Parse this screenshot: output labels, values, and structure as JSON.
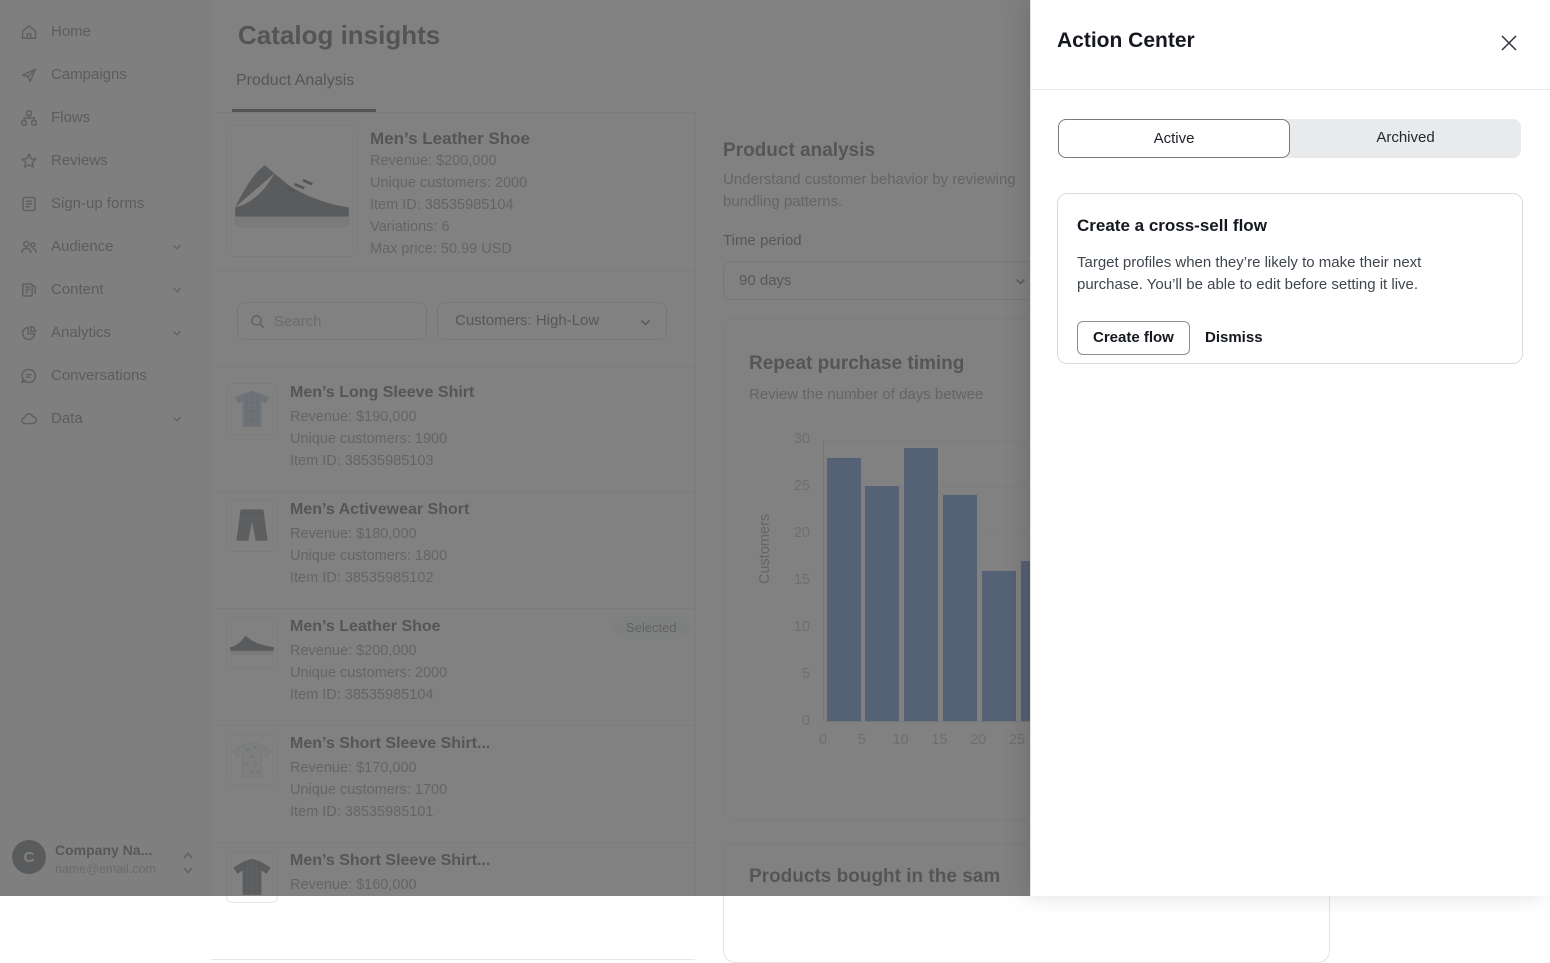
{
  "sidebar": {
    "items": [
      {
        "label": "Home",
        "icon": "home-icon",
        "expandable": false
      },
      {
        "label": "Campaigns",
        "icon": "send-icon",
        "expandable": false
      },
      {
        "label": "Flows",
        "icon": "flow-icon",
        "expandable": false
      },
      {
        "label": "Reviews",
        "icon": "star-icon",
        "expandable": false
      },
      {
        "label": "Sign-up forms",
        "icon": "form-icon",
        "expandable": false
      },
      {
        "label": "Audience",
        "icon": "people-icon",
        "expandable": true
      },
      {
        "label": "Content",
        "icon": "content-icon",
        "expandable": true
      },
      {
        "label": "Analytics",
        "icon": "pie-chart-icon",
        "expandable": true
      },
      {
        "label": "Conversations",
        "icon": "chat-icon",
        "expandable": false
      },
      {
        "label": "Data",
        "icon": "cloud-icon",
        "expandable": true
      }
    ],
    "account": {
      "initial": "C",
      "company": "Company Na...",
      "email": "name@email.com"
    }
  },
  "header": {
    "title": "Catalog insights",
    "tab": "Product Analysis"
  },
  "detail": {
    "name": "Men’s Leather Shoe",
    "lines": [
      "Revenue: $200,000",
      "Unique customers: 2000",
      "Item ID: 38535985104",
      "Variations: 6",
      "Max price: 50.99 USD"
    ]
  },
  "filters": {
    "search_placeholder": "Search",
    "sort_value": "Customers: High-Low"
  },
  "products": [
    {
      "name": "Men’s Long Sleeve Shirt",
      "revenue": "Revenue: $190,000",
      "customers": "Unique customers: 1900",
      "item_id": "Item ID: 38535985103"
    },
    {
      "name": "Men’s Activewear Short",
      "revenue": "Revenue: $180,000",
      "customers": "Unique customers: 1800",
      "item_id": "Item ID: 38535985102"
    },
    {
      "name": "Men’s Leather Shoe",
      "revenue": "Revenue: $200,000",
      "customers": "Unique customers: 2000",
      "item_id": "Item ID: 38535985104",
      "badge": "Selected"
    },
    {
      "name": "Men’s Short Sleeve Shirt...",
      "revenue": "Revenue: $170,000",
      "customers": "Unique customers: 1700",
      "item_id": "Item ID: 38535985101"
    },
    {
      "name": "Men’s Short Sleeve Shirt...",
      "revenue": "Revenue: $160,000"
    }
  ],
  "analysis": {
    "title": "Product analysis",
    "subtitle_line1": "Understand customer behavior by reviewing",
    "subtitle_line2": "bundling patterns.",
    "time_period_label": "Time period",
    "time_period_value": "90 days"
  },
  "chart_data": {
    "type": "bar",
    "title": "Repeat purchase timing",
    "subtitle": "Review the number of days betwee",
    "ylabel": "Customers",
    "xlabel": "",
    "x_ticks": [
      0,
      5,
      10,
      15,
      20,
      25
    ],
    "bucket_width_days": 5,
    "values": [
      28,
      25,
      29,
      24,
      16,
      17
    ],
    "y_ticks": [
      0,
      5,
      10,
      15,
      20,
      25,
      30
    ],
    "ylim": [
      0,
      30
    ],
    "grid": true,
    "bar_color": "#2662bc"
  },
  "related_card": {
    "title": "Products bought in the sam"
  },
  "action_center": {
    "title": "Action Center",
    "tabs": {
      "active": "Active",
      "archived": "Archived"
    },
    "card": {
      "title": "Create a cross-sell flow",
      "body": "Target profiles when they’re likely to make their next purchase. You’ll be able to edit before setting it live.",
      "primary_button": "Create flow",
      "secondary_button": "Dismiss"
    }
  },
  "colors": {
    "overlay": "rgba(98,98,98,0.8)",
    "bar": "#2662bc",
    "tab_underline": "#22262d"
  }
}
